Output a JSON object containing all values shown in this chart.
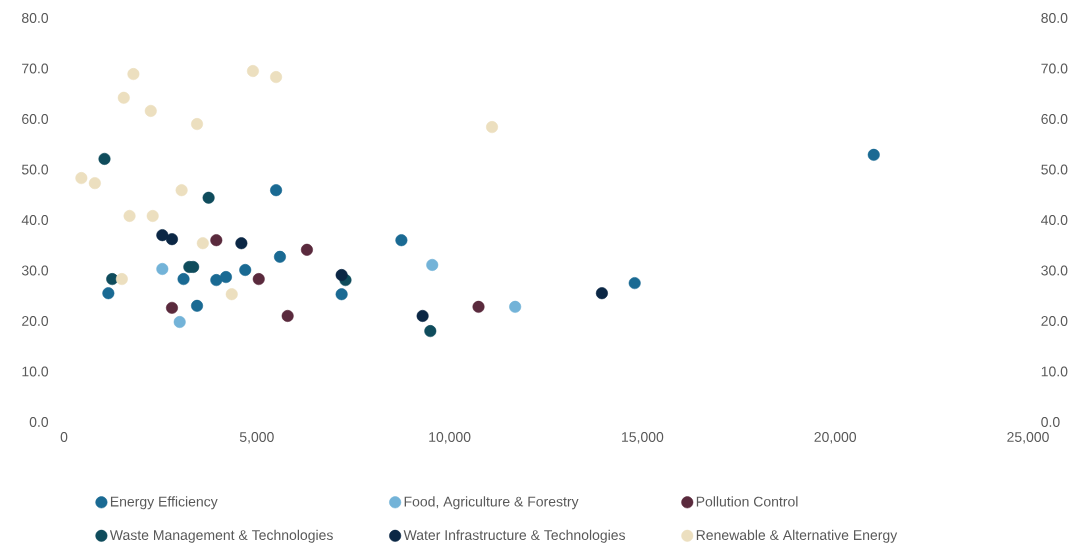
{
  "chart_data": {
    "type": "scatter",
    "marker": "circle",
    "grid": false,
    "legend": "bottom",
    "xlim": [
      0,
      25000
    ],
    "xticks": [
      0,
      {
        "value": 5000,
        "label": "5,000"
      },
      {
        "value": 10000,
        "label": "10,000"
      },
      {
        "value": 15000,
        "label": "15,000"
      },
      {
        "value": 20000,
        "label": "20,000"
      },
      {
        "value": 25000,
        "label": "25,000"
      }
    ],
    "ylim": [
      0,
      80
    ],
    "yticks": [
      {
        "value": 0,
        "label": "0.0"
      },
      {
        "value": 10,
        "label": "10.0"
      },
      {
        "value": 20,
        "label": "20.0"
      },
      {
        "value": 30,
        "label": "30.0"
      },
      {
        "value": 40,
        "label": "40.0"
      },
      {
        "value": 50,
        "label": "50.0"
      },
      {
        "value": 60,
        "label": "60.0"
      },
      {
        "value": 70,
        "label": "70.0"
      },
      {
        "value": 80,
        "label": "80.0"
      }
    ],
    "y2lim": [
      0,
      80
    ],
    "y2ticks": [
      {
        "value": 0,
        "label": "0.0"
      },
      {
        "value": 10,
        "label": "10.0"
      },
      {
        "value": 20,
        "label": "20.0"
      },
      {
        "value": 30,
        "label": "30.0"
      },
      {
        "value": 40,
        "label": "40.0"
      },
      {
        "value": 50,
        "label": "50.0"
      },
      {
        "value": 60,
        "label": "60.0"
      },
      {
        "value": 70,
        "label": "70.0"
      },
      {
        "value": 80,
        "label": "80.0"
      }
    ],
    "series": [
      {
        "name": "Energy Efficiency",
        "color": "#1a6a93",
        "x": [
          1150,
          5500,
          5600,
          3100,
          3950,
          4200,
          4700,
          3450,
          8750,
          14800,
          21000,
          7200
        ],
        "values": [
          25.5,
          45.9,
          32.7,
          28.3,
          28.1,
          28.7,
          30.1,
          23.0,
          36.0,
          27.5,
          52.9,
          25.3
        ]
      },
      {
        "name": "Food, Agriculture & Forestry",
        "color": "#73b3d8",
        "x": [
          2550,
          3000,
          9550,
          11700
        ],
        "values": [
          30.3,
          19.8,
          31.1,
          22.8
        ]
      },
      {
        "name": "Pollution Control",
        "color": "#5a2a3d",
        "x": [
          2800,
          3950,
          5050,
          5800,
          6300,
          10750
        ],
        "values": [
          22.6,
          36.0,
          28.3,
          21.0,
          34.1,
          22.8
        ]
      },
      {
        "name": "Waste Management & Technologies",
        "color": "#0f4c5c",
        "x": [
          1050,
          1250,
          3750,
          3250,
          3350,
          7300,
          9500
        ],
        "values": [
          52.1,
          28.3,
          44.4,
          30.7,
          30.7,
          28.1,
          18.0
        ]
      },
      {
        "name": "Water Infrastructure & Technologies",
        "color": "#0b2745",
        "x": [
          2550,
          2800,
          4600,
          7200,
          9300,
          13950
        ],
        "values": [
          37.0,
          36.2,
          35.4,
          29.1,
          21.0,
          25.5
        ]
      },
      {
        "name": "Renewable & Alternative Energy",
        "color": "#ecdfbf",
        "x": [
          1800,
          1550,
          2250,
          3450,
          4900,
          5500,
          450,
          800,
          3050,
          1700,
          2300,
          3600,
          1500,
          4350,
          11100
        ],
        "values": [
          68.9,
          64.2,
          61.6,
          59.0,
          69.5,
          68.3,
          48.3,
          47.3,
          45.9,
          40.8,
          40.8,
          35.4,
          28.3,
          25.3,
          58.4
        ]
      }
    ]
  }
}
